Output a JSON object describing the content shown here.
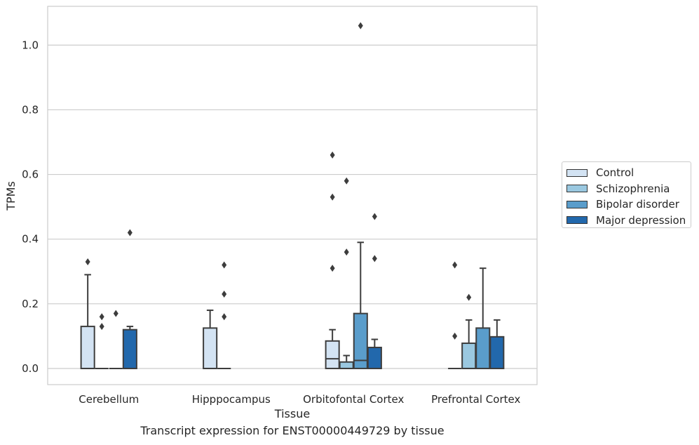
{
  "chart_data": {
    "type": "box",
    "title": "",
    "xlabel": "Tissue",
    "ylabel": "TPMs",
    "caption": "Transcript expression for ENST00000449729 by tissue",
    "ylim": [
      -0.05,
      1.12
    ],
    "yticks": [
      0.0,
      0.2,
      0.4,
      0.6,
      0.8,
      1.0
    ],
    "ytick_labels": [
      "0.0",
      "0.2",
      "0.4",
      "0.6",
      "0.8",
      "1.0"
    ],
    "categories": [
      "Cerebellum",
      "Hipppocampus",
      "Orbitofontal Cortex",
      "Prefrontal Cortex"
    ],
    "grid": "horizontal",
    "legend_position": "outside-right",
    "series": [
      {
        "name": "Control",
        "color": "#d3e3f3",
        "boxes": [
          {
            "q1": 0.0,
            "median": 0.0,
            "q3": 0.13,
            "whisker_low": 0.0,
            "whisker_high": 0.29,
            "outliers": [
              0.33
            ]
          },
          {
            "q1": 0.0,
            "median": 0.0,
            "q3": 0.125,
            "whisker_low": 0.0,
            "whisker_high": 0.18,
            "outliers": []
          },
          {
            "q1": 0.0,
            "median": 0.03,
            "q3": 0.085,
            "whisker_low": 0.0,
            "whisker_high": 0.12,
            "outliers": [
              0.31,
              0.53,
              0.66
            ]
          },
          {
            "q1": 0.0,
            "median": 0.0,
            "q3": 0.0,
            "whisker_low": 0.0,
            "whisker_high": 0.0,
            "outliers": [
              0.1,
              0.32
            ]
          }
        ]
      },
      {
        "name": "Schizophrenia",
        "color": "#9ac8e0",
        "boxes": [
          {
            "q1": 0.0,
            "median": 0.0,
            "q3": 0.0,
            "whisker_low": 0.0,
            "whisker_high": 0.0,
            "outliers": [
              0.13,
              0.16
            ]
          },
          {
            "q1": 0.0,
            "median": 0.0,
            "q3": 0.0,
            "whisker_low": 0.0,
            "whisker_high": 0.0,
            "outliers": [
              0.16,
              0.23,
              0.32
            ]
          },
          {
            "q1": 0.0,
            "median": 0.0,
            "q3": 0.02,
            "whisker_low": 0.0,
            "whisker_high": 0.04,
            "outliers": [
              0.36,
              0.58
            ]
          },
          {
            "q1": 0.0,
            "median": 0.0,
            "q3": 0.078,
            "whisker_low": 0.0,
            "whisker_high": 0.15,
            "outliers": [
              0.22
            ]
          }
        ]
      },
      {
        "name": "Bipolar disorder",
        "color": "#5a9dcb",
        "boxes": [
          {
            "q1": 0.0,
            "median": 0.0,
            "q3": 0.0,
            "whisker_low": 0.0,
            "whisker_high": 0.0,
            "outliers": [
              0.17
            ]
          },
          null,
          {
            "q1": 0.0,
            "median": 0.025,
            "q3": 0.17,
            "whisker_low": 0.0,
            "whisker_high": 0.39,
            "outliers": [
              1.06
            ]
          },
          {
            "q1": 0.0,
            "median": 0.0,
            "q3": 0.125,
            "whisker_low": 0.0,
            "whisker_high": 0.31,
            "outliers": []
          }
        ]
      },
      {
        "name": "Major depression",
        "color": "#2268ac",
        "boxes": [
          {
            "q1": 0.0,
            "median": 0.0,
            "q3": 0.12,
            "whisker_low": 0.0,
            "whisker_high": 0.13,
            "outliers": [
              0.42
            ]
          },
          null,
          {
            "q1": 0.0,
            "median": 0.0,
            "q3": 0.065,
            "whisker_low": 0.0,
            "whisker_high": 0.09,
            "outliers": [
              0.34,
              0.47
            ]
          },
          {
            "q1": 0.0,
            "median": 0.0,
            "q3": 0.098,
            "whisker_low": 0.0,
            "whisker_high": 0.15,
            "outliers": []
          }
        ]
      }
    ]
  }
}
